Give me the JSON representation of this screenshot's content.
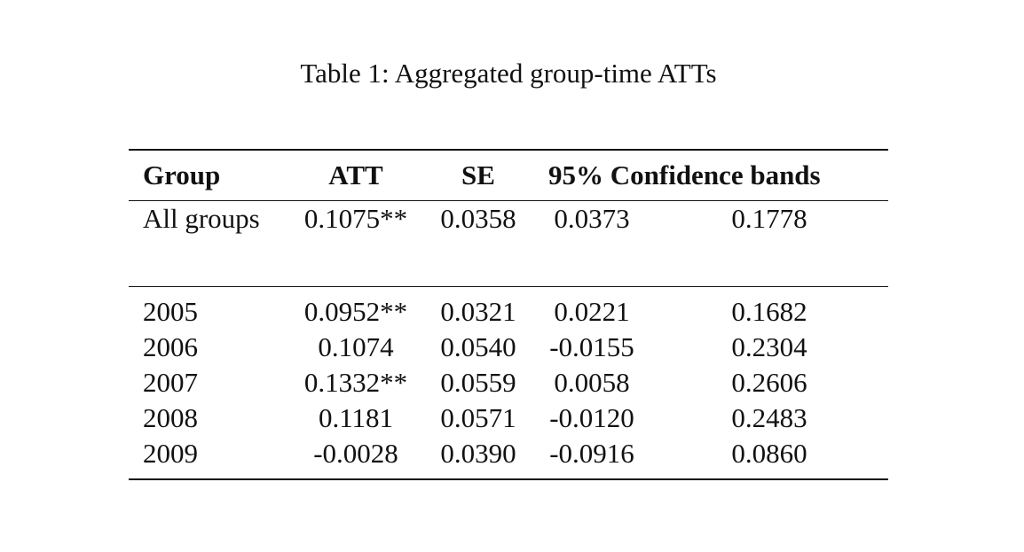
{
  "caption": "Table 1: Aggregated group-time ATTs",
  "header": {
    "group": "Group",
    "att": "ATT",
    "se": "SE",
    "bands": "95% Confidence bands"
  },
  "summary": {
    "group": "All groups",
    "att": "0.1075**",
    "se": "0.0358",
    "lower": "0.0373",
    "upper": "0.1778"
  },
  "rows": [
    {
      "group": "2005",
      "att": "0.0952**",
      "se": "0.0321",
      "lower": "0.0221",
      "upper": "0.1682"
    },
    {
      "group": "2006",
      "att": "0.1074",
      "se": "0.0540",
      "lower": "-0.0155",
      "upper": "0.2304"
    },
    {
      "group": "2007",
      "att": "0.1332**",
      "se": "0.0559",
      "lower": "0.0058",
      "upper": "0.2606"
    },
    {
      "group": "2008",
      "att": "0.1181",
      "se": "0.0571",
      "lower": "-0.0120",
      "upper": "0.2483"
    },
    {
      "group": "2009",
      "att": "-0.0028",
      "se": "0.0390",
      "lower": "-0.0916",
      "upper": "0.0860"
    }
  ]
}
